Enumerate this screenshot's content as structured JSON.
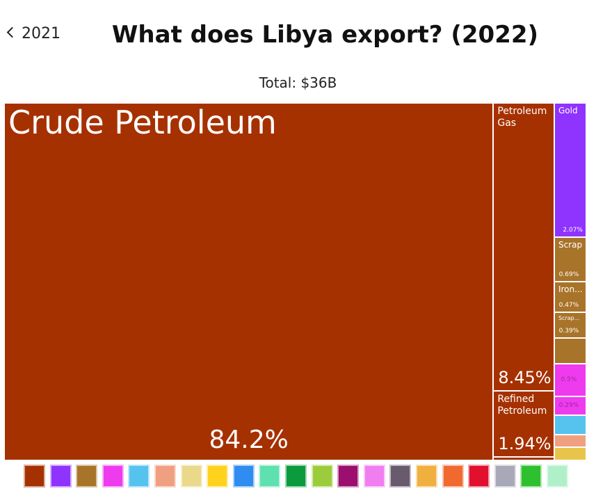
{
  "back": "2021",
  "chart_data": {
    "type": "treemap",
    "title": "What does Libya export? (2022)",
    "subtitle": "Total: $36B",
    "items": [
      {
        "name": "Crude Petroleum",
        "value": 84.2,
        "value_label": "84.2%",
        "color": "#a63100"
      },
      {
        "name": "Petroleum Gas",
        "value": 8.45,
        "value_label": "8.45%",
        "color": "#a63100"
      },
      {
        "name": "Refined Petroleum",
        "value": 1.94,
        "value_label": "1.94%",
        "color": "#a63100"
      },
      {
        "name": null,
        "value": 0.1,
        "color": "#a63100"
      },
      {
        "name": "Gold",
        "value": 2.07,
        "value_label": "2.07%",
        "color": "#8f33ff"
      },
      {
        "name": "Scrap Iron",
        "value": 0.69,
        "value_label": "0.69%",
        "color": "#a8742a"
      },
      {
        "name": "Iron...",
        "value": 0.47,
        "value_label": "0.47%",
        "color": "#a8742a"
      },
      {
        "name": "Scrap...",
        "value": 0.39,
        "value_label": "0.39%",
        "color": "#a8742a"
      },
      {
        "name": null,
        "value": 0.4,
        "color": "#a8742a"
      },
      {
        "name": null,
        "value": 0.5,
        "value_label": "0.5%",
        "color": "#ee3bee"
      },
      {
        "name": null,
        "value": 0.29,
        "value_label": "0.29%",
        "color": "#ee3bee"
      },
      {
        "name": null,
        "value": 0.3,
        "color": "#56c3ef"
      },
      {
        "name": null,
        "value": 0.2,
        "color": "#f0a080"
      },
      {
        "name": null,
        "value": 0.2,
        "color": "#e8c54a"
      }
    ],
    "legend_colors": [
      "#a63100",
      "#8f33ff",
      "#a8742a",
      "#ee3bee",
      "#56c3ef",
      "#f0a080",
      "#ead98a",
      "#ffd21e",
      "#2f8cf0",
      "#5ee0b0",
      "#0b9a3c",
      "#9ccc3c",
      "#9c0f6e",
      "#f07ef0",
      "#6a5a6e",
      "#f0b040",
      "#f06a30",
      "#e0102e",
      "#a8a8b8",
      "#2ec02e",
      "#b0f0c8"
    ]
  }
}
